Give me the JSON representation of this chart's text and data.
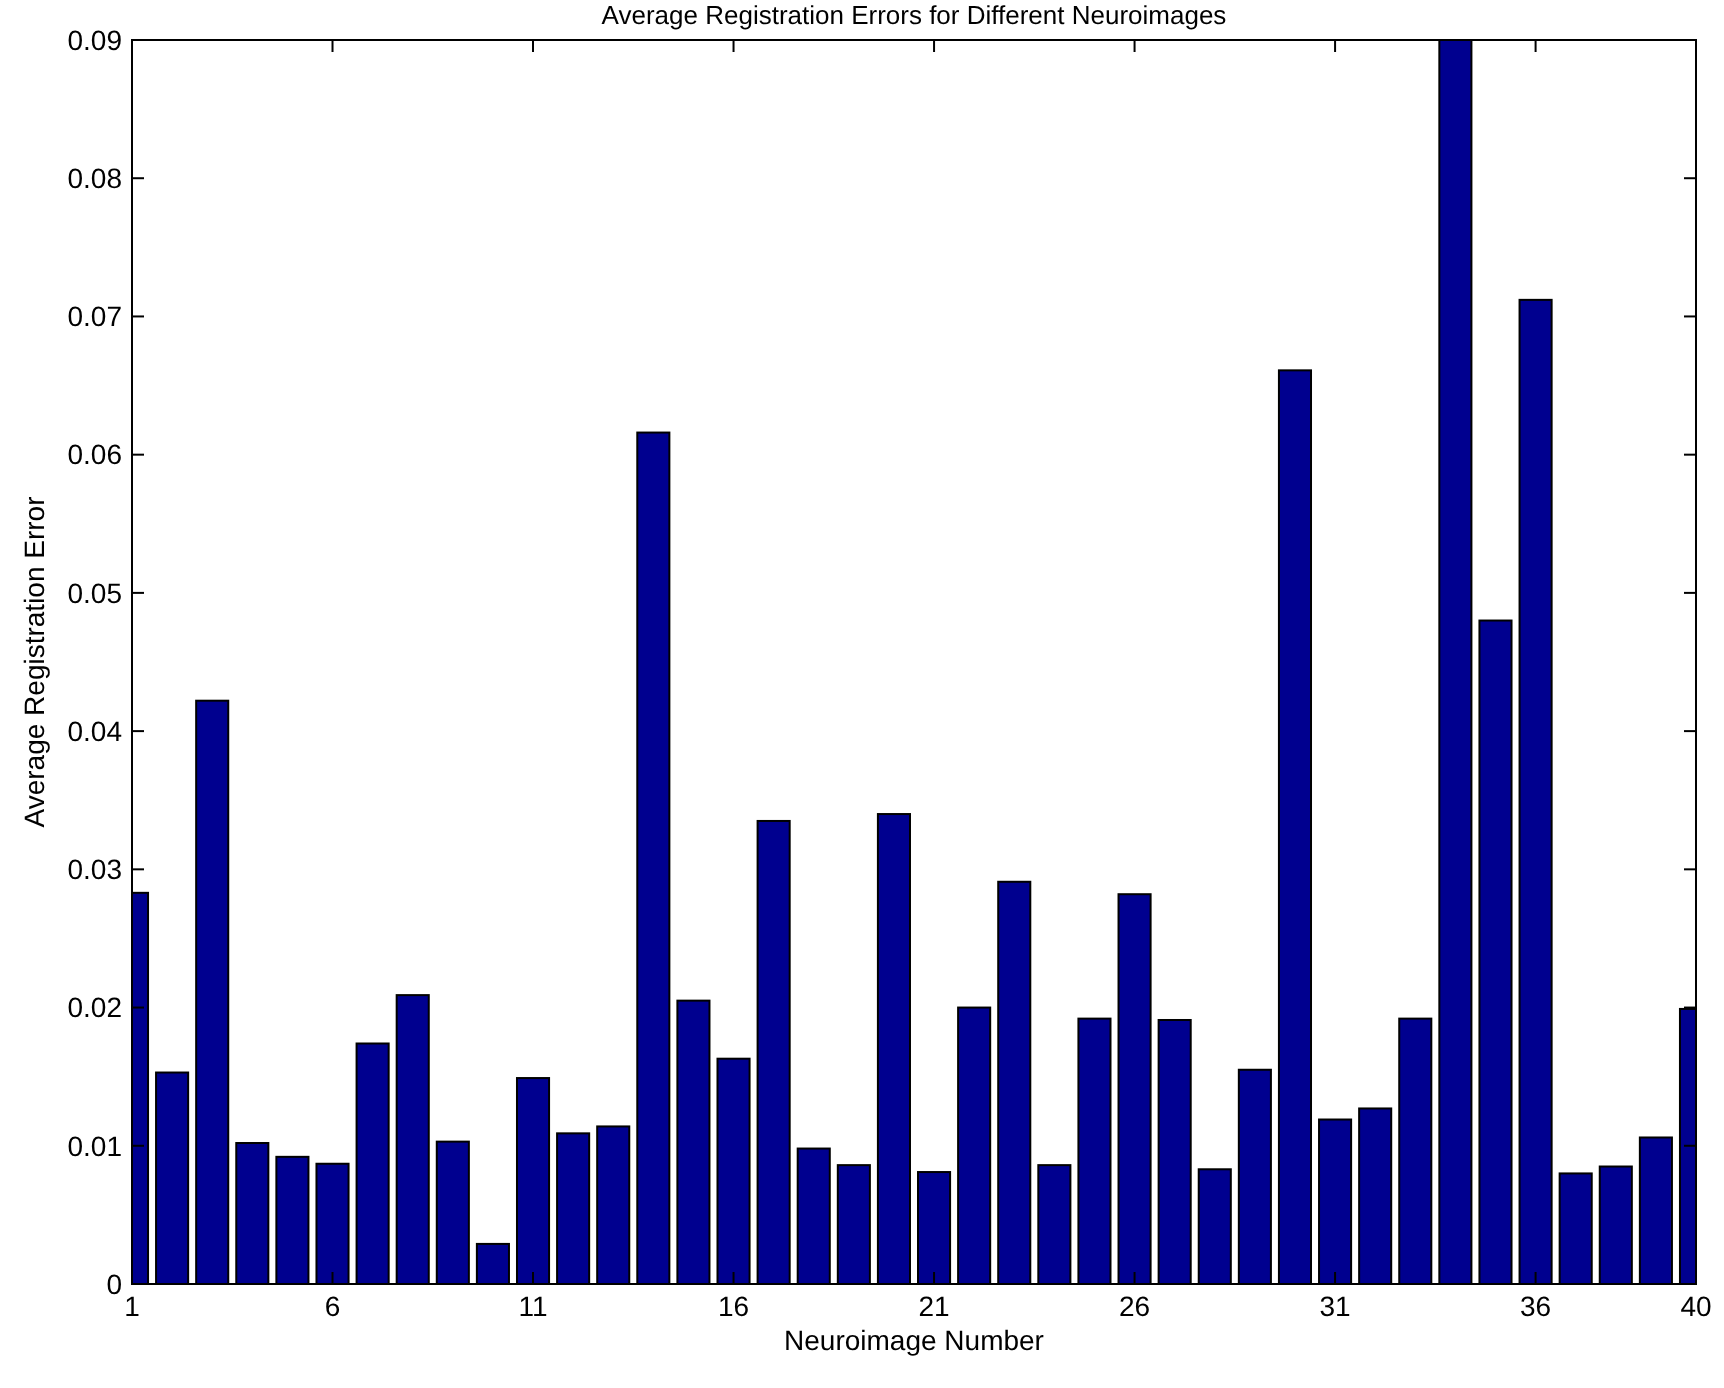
{
  "chart_data": {
    "type": "bar",
    "title": "Average Registration Errors for Different Neuroimages",
    "xlabel": "Neuroimage Number",
    "ylabel": "Average Registration Error",
    "x": [
      1,
      2,
      3,
      4,
      5,
      6,
      7,
      8,
      9,
      10,
      11,
      12,
      13,
      14,
      15,
      16,
      17,
      18,
      19,
      20,
      21,
      22,
      23,
      24,
      25,
      26,
      27,
      28,
      29,
      30,
      31,
      32,
      33,
      34,
      35,
      36,
      37,
      38,
      39,
      40
    ],
    "values": [
      0.0283,
      0.0153,
      0.0422,
      0.0102,
      0.0092,
      0.0087,
      0.0174,
      0.0209,
      0.0103,
      0.0029,
      0.0149,
      0.0109,
      0.0114,
      0.0616,
      0.0205,
      0.0163,
      0.0335,
      0.0098,
      0.0086,
      0.034,
      0.0081,
      0.02,
      0.0291,
      0.0086,
      0.0192,
      0.0282,
      0.0191,
      0.0083,
      0.0155,
      0.0661,
      0.0119,
      0.0127,
      0.0192,
      0.09,
      0.048,
      0.0712,
      0.008,
      0.0085,
      0.0106,
      0.0199
    ],
    "color": "#00008f",
    "xlim": [
      1,
      40
    ],
    "xticks": [
      1,
      6,
      11,
      16,
      21,
      26,
      31,
      36,
      40
    ],
    "ylim": [
      0,
      0.09
    ],
    "yticks": [
      0,
      0.01,
      0.02,
      0.03,
      0.04,
      0.05,
      0.06,
      0.07,
      0.08,
      0.09
    ],
    "grid": false
  }
}
